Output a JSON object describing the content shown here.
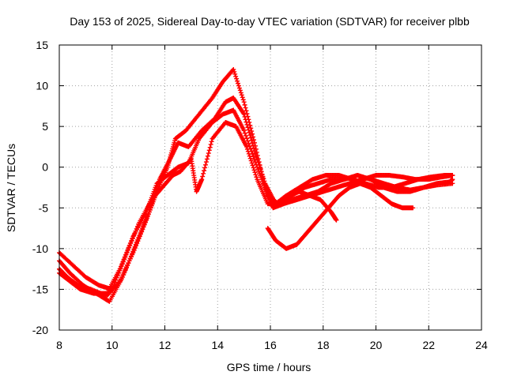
{
  "chart_data": {
    "type": "scatter",
    "title": "Day 153 of 2025, Sidereal Day-to-day VTEC variation (SDTVAR) for receiver plbb",
    "xlabel": "GPS time / hours",
    "ylabel": "SDTVAR / TECUs",
    "xlim": [
      8,
      24
    ],
    "ylim": [
      -20,
      15
    ],
    "xticks": [
      "8",
      "10",
      "12",
      "14",
      "16",
      "18",
      "20",
      "22",
      "24"
    ],
    "yticks": [
      "-20",
      "-15",
      "-10",
      "-5",
      "0",
      "5",
      "10",
      "15"
    ],
    "grid": true,
    "marker": "+",
    "series_color": "#ff0000",
    "series": [
      {
        "name": "trace-1",
        "x": [
          8.0,
          8.3,
          8.7,
          9.2,
          9.8,
          10.3,
          10.8,
          11.3,
          11.7,
          12.1,
          12.4,
          12.8,
          13.3,
          13.8,
          14.2,
          14.6,
          15.0,
          15.4,
          15.8,
          16.1,
          16.5,
          17.0,
          17.5,
          18.0,
          18.5,
          19.0,
          19.5,
          20.0,
          20.5,
          21.0,
          21.5,
          22.0,
          22.5,
          22.9
        ],
        "y": [
          -12.5,
          -13.5,
          -14.5,
          -15.0,
          -15.8,
          -14.0,
          -10.5,
          -6.5,
          -3.0,
          0.0,
          3.5,
          4.5,
          6.5,
          8.5,
          10.5,
          12.0,
          8.0,
          3.0,
          -2.5,
          -5.0,
          -4.5,
          -4.0,
          -3.5,
          -3.0,
          -2.5,
          -2.0,
          -1.5,
          -1.0,
          -1.0,
          -1.2,
          -1.5,
          -1.5,
          -1.2,
          -1.0
        ]
      },
      {
        "name": "trace-2",
        "x": [
          8.0,
          8.4,
          8.9,
          9.4,
          9.9,
          10.4,
          10.9,
          11.4,
          11.8,
          12.2,
          12.5,
          12.9,
          13.4,
          13.9,
          14.3,
          14.6,
          15.0,
          15.4,
          15.8,
          16.2,
          16.6,
          17.1,
          17.6,
          18.1,
          18.6,
          19.1,
          19.6,
          20.1,
          20.6,
          21.1,
          21.6,
          22.1,
          22.6,
          22.9
        ],
        "y": [
          -11.5,
          -13.0,
          -14.5,
          -15.5,
          -16.5,
          -13.5,
          -9.5,
          -5.5,
          -1.5,
          1.0,
          3.0,
          2.5,
          4.5,
          6.0,
          8.0,
          8.5,
          6.5,
          2.0,
          -2.0,
          -4.5,
          -3.5,
          -2.5,
          -1.5,
          -1.0,
          -1.0,
          -1.5,
          -2.0,
          -2.5,
          -2.5,
          -2.0,
          -1.5,
          -1.2,
          -1.0,
          -1.0
        ]
      },
      {
        "name": "trace-3",
        "x": [
          8.0,
          8.4,
          8.8,
          9.3,
          9.8,
          10.3,
          10.8,
          11.3,
          11.7,
          12.1,
          12.5,
          12.9,
          13.3,
          13.8,
          14.2,
          14.6,
          15.0,
          15.5,
          15.9,
          16.3,
          16.8,
          17.3,
          17.8,
          18.3,
          18.8,
          19.3,
          19.8,
          20.3,
          20.8,
          21.3,
          21.8,
          22.3,
          22.8,
          22.9
        ],
        "y": [
          -13.0,
          -14.0,
          -15.0,
          -15.5,
          -15.5,
          -12.5,
          -8.5,
          -5.5,
          -2.0,
          -1.0,
          0.0,
          0.5,
          3.5,
          5.5,
          6.5,
          7.0,
          4.5,
          0.0,
          -3.5,
          -4.5,
          -4.0,
          -3.5,
          -3.0,
          -2.0,
          -1.5,
          -1.0,
          -1.5,
          -2.5,
          -3.0,
          -3.0,
          -2.5,
          -2.0,
          -1.8,
          -1.5
        ]
      },
      {
        "name": "trace-4",
        "x": [
          8.0,
          8.5,
          9.0,
          9.5,
          10.0,
          10.5,
          11.0,
          11.5,
          11.9,
          12.3,
          12.6,
          13.0,
          13.2,
          13.4,
          13.8,
          14.3,
          14.7,
          15.1,
          15.5,
          15.9,
          16.3,
          16.8,
          17.3,
          17.8,
          18.3,
          18.8,
          19.3,
          19.8,
          20.3,
          20.8,
          21.3,
          21.8,
          22.3,
          22.9
        ],
        "y": [
          -10.5,
          -12.0,
          -13.5,
          -14.5,
          -15.0,
          -11.0,
          -7.0,
          -4.0,
          -2.5,
          -1.0,
          -0.5,
          1.0,
          -3.0,
          -1.5,
          3.5,
          5.5,
          5.0,
          2.5,
          -1.5,
          -4.5,
          -4.5,
          -3.5,
          -2.5,
          -2.0,
          -1.5,
          -1.5,
          -1.0,
          -1.5,
          -2.0,
          -2.5,
          -2.8,
          -2.5,
          -2.2,
          -2.0
        ]
      },
      {
        "name": "trace-5",
        "x": [
          15.9,
          16.2,
          16.6,
          17.0,
          17.4,
          17.8,
          18.2,
          18.6,
          19.0,
          19.4,
          19.8,
          20.2,
          20.6,
          21.0,
          21.4
        ],
        "y": [
          -7.5,
          -9.0,
          -10.0,
          -9.5,
          -8.0,
          -6.5,
          -5.0,
          -3.5,
          -2.5,
          -2.0,
          -2.5,
          -3.5,
          -4.5,
          -5.0,
          -5.0
        ]
      },
      {
        "name": "trace-6",
        "x": [
          16.0,
          16.3,
          16.7,
          17.1,
          17.5,
          17.9,
          18.3,
          18.5
        ],
        "y": [
          -4.0,
          -4.5,
          -3.5,
          -3.0,
          -3.5,
          -4.0,
          -5.5,
          -6.5
        ]
      }
    ]
  }
}
